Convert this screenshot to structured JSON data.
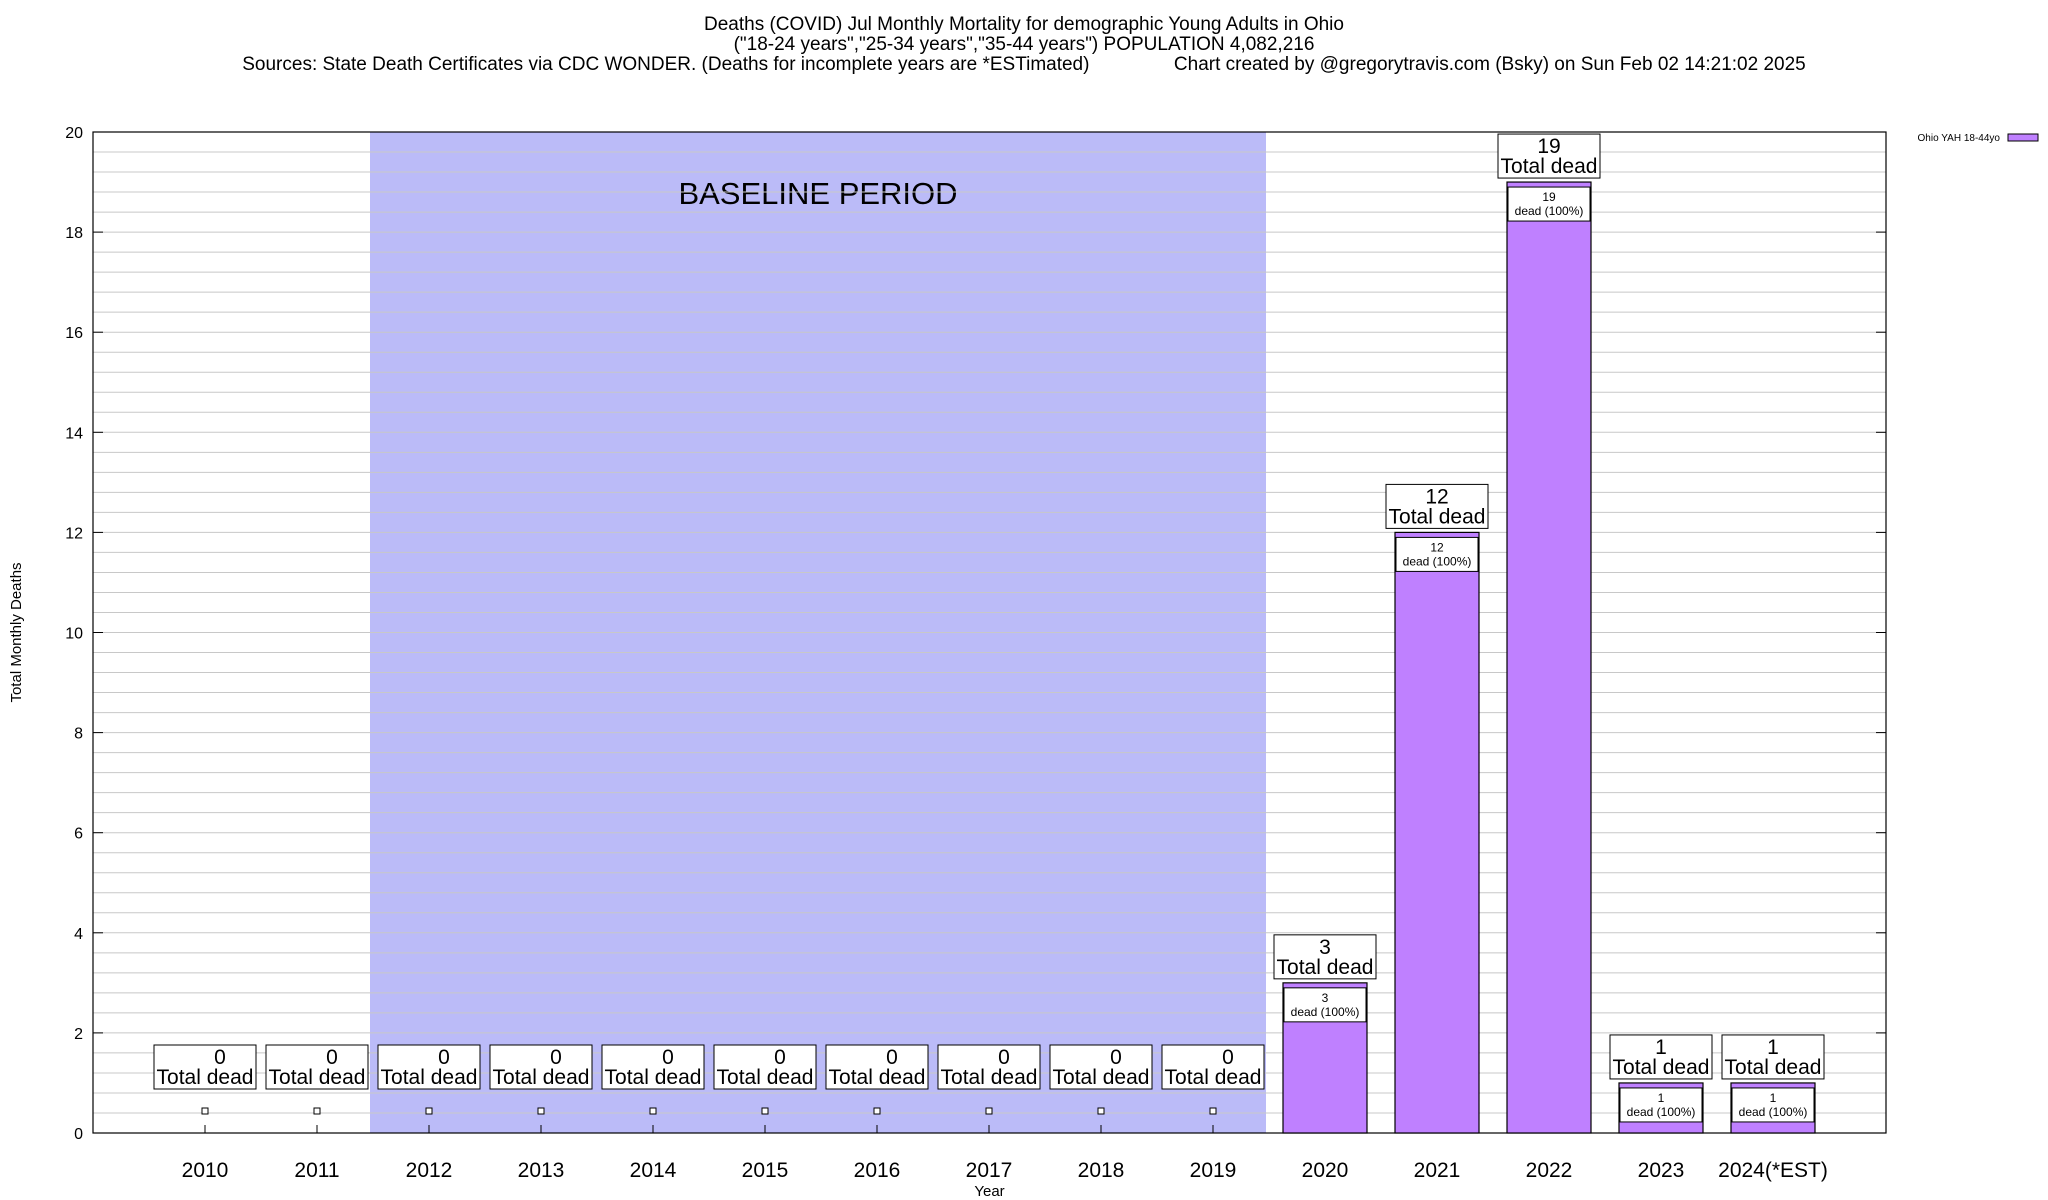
{
  "header": {
    "title_line1": "Deaths (COVID) Jul Monthly Mortality for demographic Young Adults in Ohio",
    "title_line2": "(\"18-24 years\",\"25-34 years\",\"35-44 years\") POPULATION 4,082,216",
    "title_line3": "Sources: State Death Certificates via CDC WONDER. (Deaths for incomplete years are *ESTimated)                Chart created by @gregorytravis.com (Bsky) on Sun Feb 02 14:21:02 2025"
  },
  "chart_data": {
    "type": "bar",
    "xlabel": "Year",
    "ylabel": "Total Monthly Deaths",
    "ylim": [
      0,
      20
    ],
    "y_ticks": [
      0,
      2,
      4,
      6,
      8,
      10,
      12,
      14,
      16,
      18,
      20
    ],
    "categories": [
      "2010",
      "2011",
      "2012",
      "2013",
      "2014",
      "2015",
      "2016",
      "2017",
      "2018",
      "2019",
      "2020",
      "2021",
      "2022",
      "2023",
      "2024(*EST)"
    ],
    "series": [
      {
        "name": "Ohio YAH 18-44yo",
        "values": [
          0,
          0,
          0,
          0,
          0,
          0,
          0,
          0,
          0,
          0,
          3,
          12,
          19,
          1,
          1
        ]
      }
    ],
    "total_label_suffix": "Total dead",
    "inner_label_suffix": "dead (100%)",
    "baseline": {
      "label": "BASELINE PERIOD",
      "start_index": 2,
      "end_index": 9,
      "color": "#bbbbf8"
    },
    "bar_color": "#bf80ff",
    "grid": true,
    "legend_position": "top-right"
  }
}
